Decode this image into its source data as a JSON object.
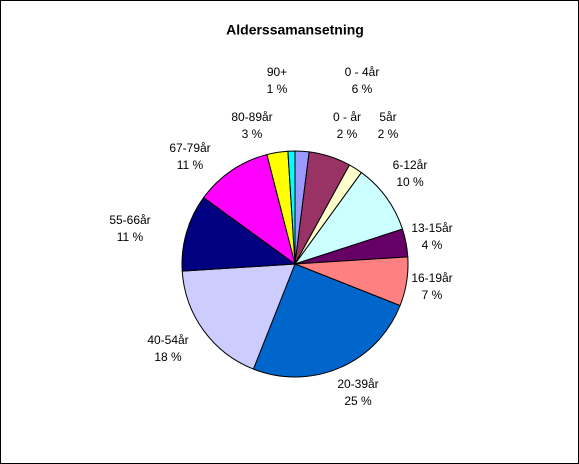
{
  "chart_data": {
    "type": "pie",
    "title": "Alderssamansetning",
    "categories": [
      "0 - år",
      "0 - 4år",
      "5år",
      "6-12år",
      "13-15år",
      "16-19år",
      "20-39år",
      "40-54år",
      "55-66år",
      "67-79år",
      "80-89år",
      "90+"
    ],
    "values": [
      2,
      6,
      2,
      10,
      4,
      7,
      25,
      18,
      11,
      11,
      3,
      1
    ],
    "value_labels": [
      "2 %",
      "6 %",
      "2 %",
      "10 %",
      "4 %",
      "7 %",
      "25 %",
      "18 %",
      "11 %",
      "11 %",
      "3 %",
      "1 %"
    ],
    "colors": [
      "#9999ff",
      "#993366",
      "#ffffcc",
      "#ccffff",
      "#660066",
      "#ff8080",
      "#0066cc",
      "#ccccff",
      "#000080",
      "#ff00ff",
      "#ffff00",
      "#00ffff"
    ]
  }
}
